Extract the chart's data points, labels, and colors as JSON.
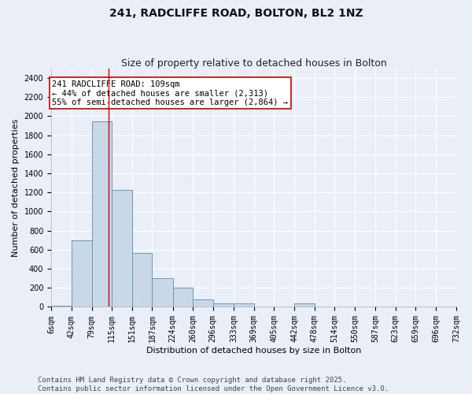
{
  "title_line1": "241, RADCLIFFE ROAD, BOLTON, BL2 1NZ",
  "title_line2": "Size of property relative to detached houses in Bolton",
  "xlabel": "Distribution of detached houses by size in Bolton",
  "ylabel": "Number of detached properties",
  "bin_edges": [
    6,
    42,
    79,
    115,
    151,
    187,
    224,
    260,
    296,
    333,
    369,
    405,
    442,
    478,
    514,
    550,
    587,
    623,
    659,
    696,
    732
  ],
  "bar_heights": [
    10,
    700,
    1950,
    1230,
    570,
    300,
    200,
    80,
    40,
    35,
    0,
    0,
    35,
    0,
    0,
    0,
    0,
    0,
    0,
    0
  ],
  "bar_color": "#c8d8e8",
  "bar_edge_color": "#6699bb",
  "bar_edge_width": 0.7,
  "red_line_x": 109,
  "red_line_color": "#cc0000",
  "annotation_text": "241 RADCLIFFE ROAD: 109sqm\n← 44% of detached houses are smaller (2,313)\n55% of semi-detached houses are larger (2,864) →",
  "annotation_box_color": "#ffffff",
  "annotation_box_edge": "#cc0000",
  "ylim": [
    0,
    2500
  ],
  "yticks": [
    0,
    200,
    400,
    600,
    800,
    1000,
    1200,
    1400,
    1600,
    1800,
    2000,
    2200,
    2400
  ],
  "bg_color": "#eaeff7",
  "grid_color": "#ffffff",
  "footer_line1": "Contains HM Land Registry data © Crown copyright and database right 2025.",
  "footer_line2": "Contains public sector information licensed under the Open Government Licence v3.0.",
  "title_fontsize": 10,
  "subtitle_fontsize": 9,
  "axis_label_fontsize": 8,
  "tick_fontsize": 7,
  "annotation_fontsize": 7.5,
  "footer_fontsize": 6.5
}
